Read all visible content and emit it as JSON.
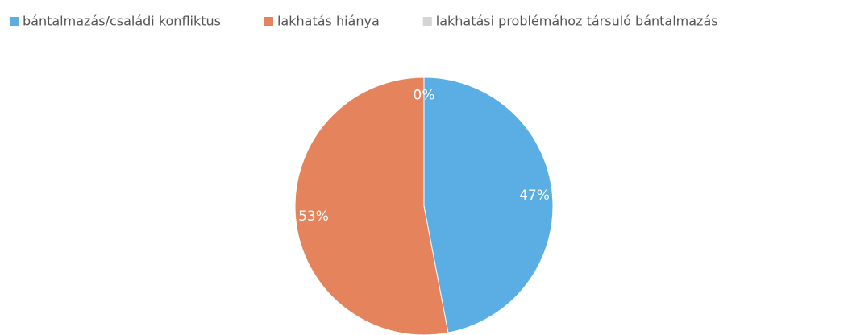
{
  "chart_data": {
    "type": "pie",
    "categories": [
      "bántalmazás/családi konfliktus",
      "lakhatás hiánya",
      "lakhatási problémához társuló bántalmazás"
    ],
    "values": [
      47,
      53,
      0
    ],
    "value_labels": [
      "47%",
      "53%",
      "0%"
    ],
    "colors": [
      "#5aaee3",
      "#e4835c",
      "#d4d4d4"
    ],
    "legend": "top"
  }
}
